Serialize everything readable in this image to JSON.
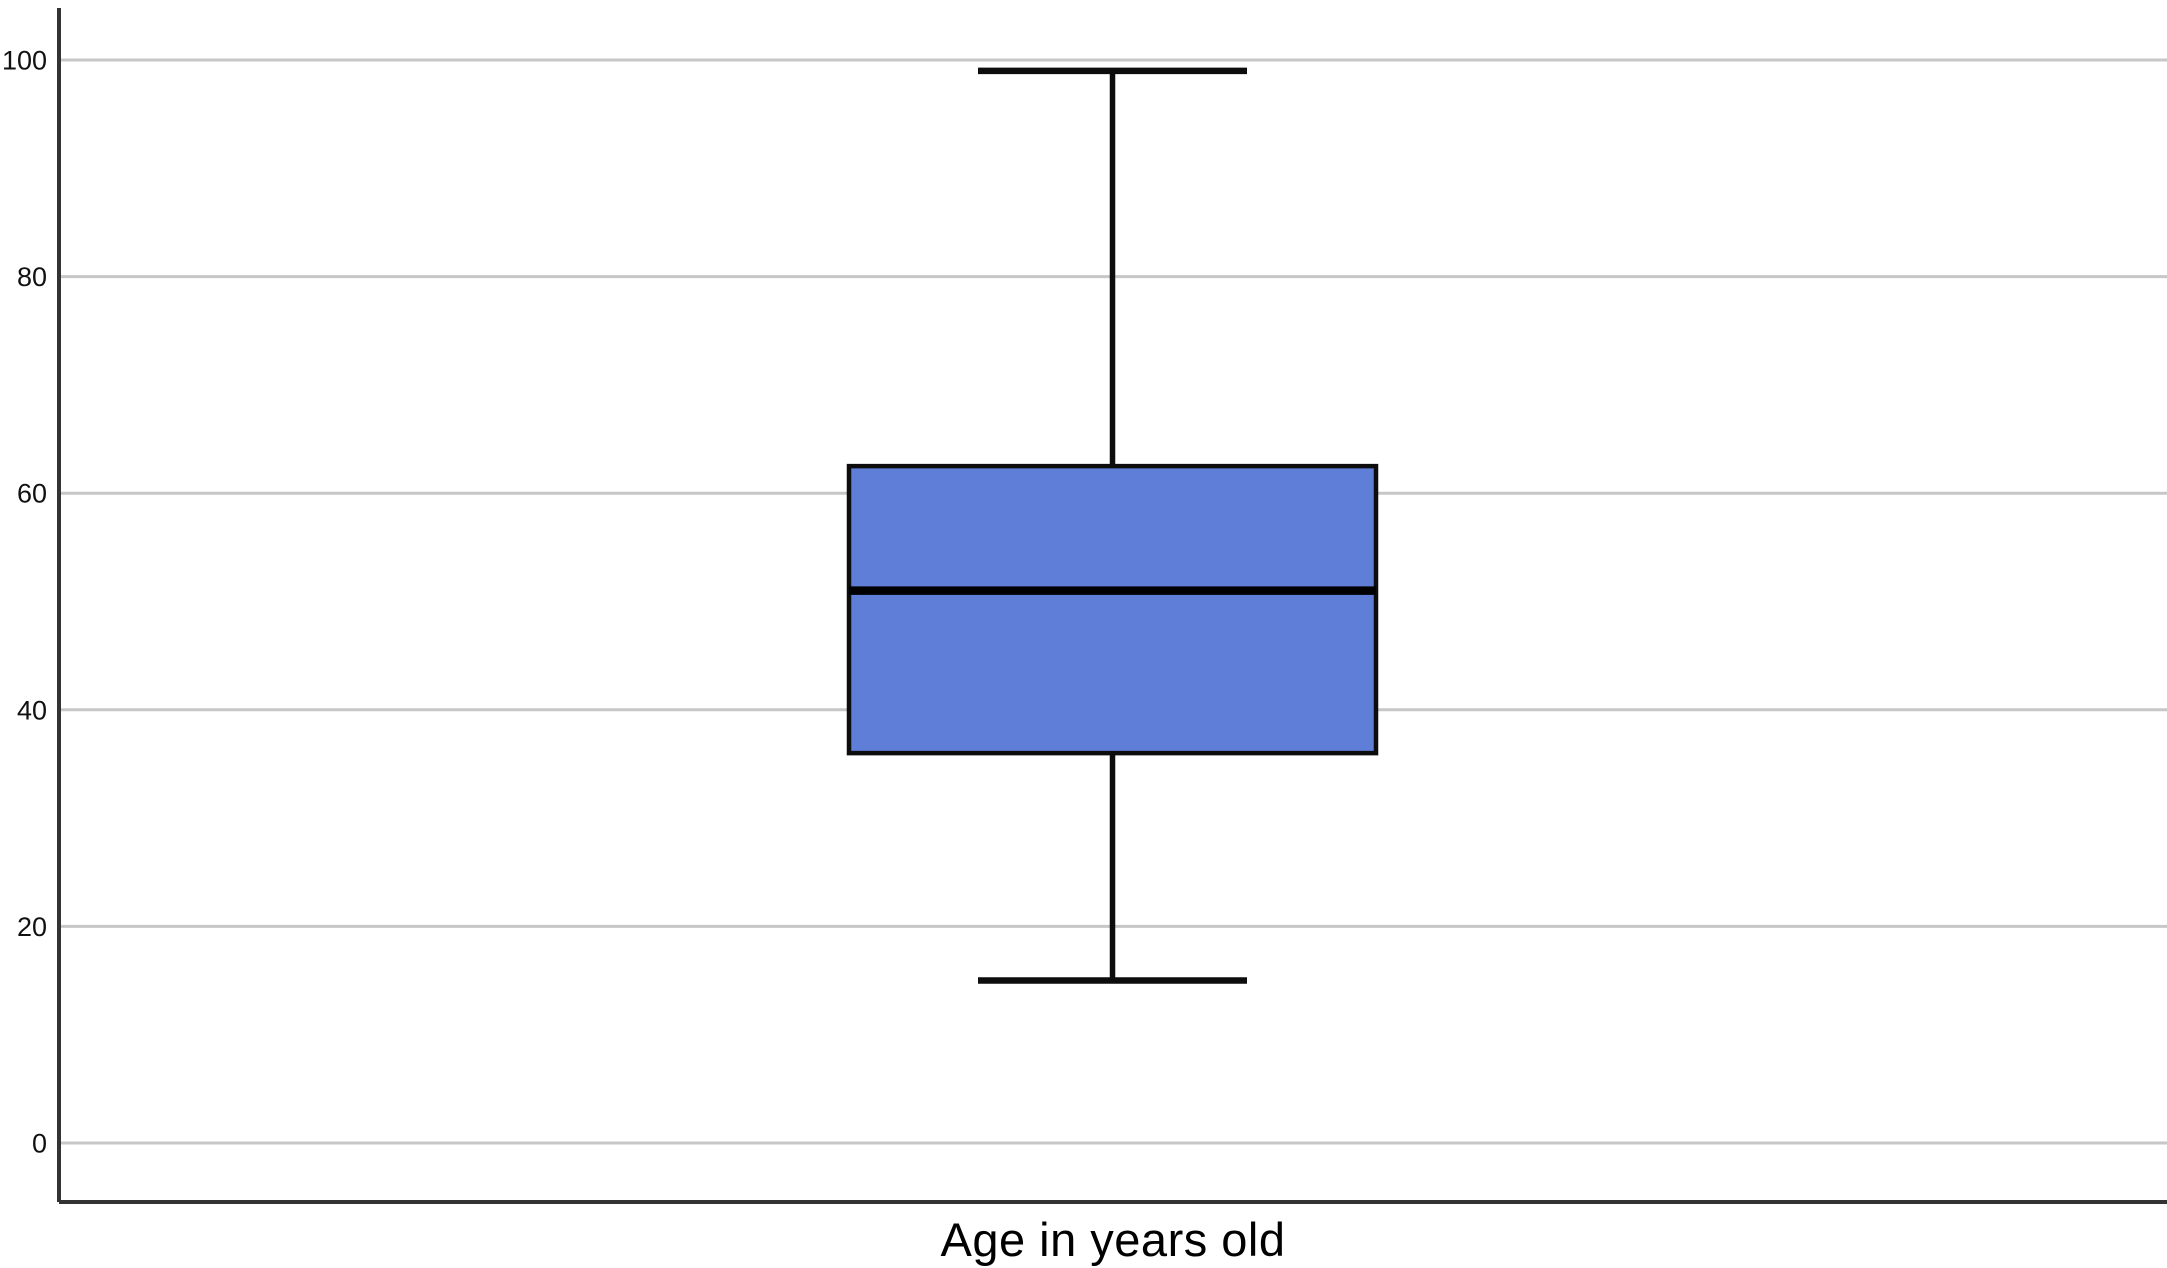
{
  "chart_data": {
    "type": "boxplot",
    "title": "",
    "xlabel": "Age in years old",
    "ylabel": "",
    "ylim": [
      0,
      100
    ],
    "yticks": [
      0,
      20,
      40,
      60,
      80,
      100
    ],
    "grid": true,
    "legend": "none",
    "categories": [
      "Age in years old"
    ],
    "series": [
      {
        "name": "Age in years old",
        "min": 15,
        "q1": 36,
        "median": 51,
        "q3": 62.5,
        "max": 99,
        "outliers": []
      }
    ],
    "colors": {
      "background": "#ffffff",
      "box_fill": "#5f7ed8",
      "box_stroke": "#0d0d0d",
      "median_stroke": "#000000",
      "whisker_stroke": "#0d0d0d",
      "gridline": "#c7c7c7",
      "axis_line": "#333333",
      "tick_label": "#111111",
      "xlabel_color": "#000000"
    }
  }
}
